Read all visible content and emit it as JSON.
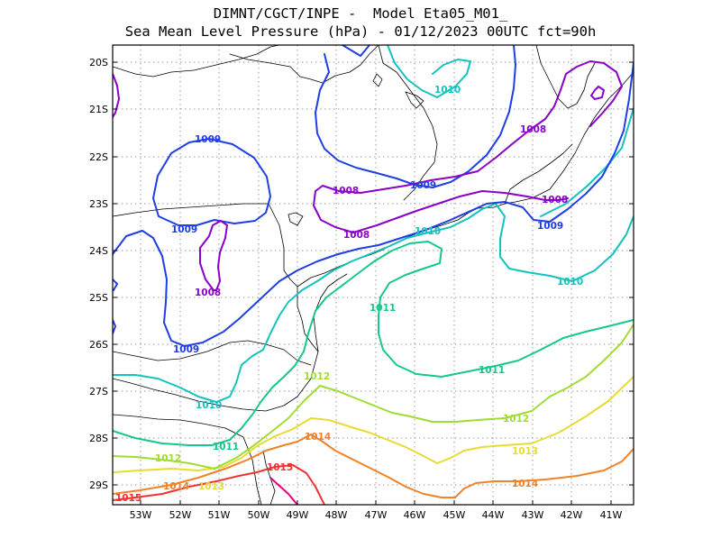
{
  "title": {
    "line1": "DIMNT/CGCT/INPE -  Model Eta05_M01_",
    "line2": "Sea Mean Level Pressure (hPa) - 01/12/2023 00UTC fct=90h"
  },
  "axes": {
    "lat_ticks": [
      "20S",
      "21S",
      "22S",
      "23S",
      "24S",
      "25S",
      "26S",
      "27S",
      "28S",
      "29S"
    ],
    "lon_ticks": [
      "53W",
      "52W",
      "51W",
      "50W",
      "49W",
      "48W",
      "47W",
      "46W",
      "45W",
      "44W",
      "43W",
      "42W",
      "41W"
    ],
    "grid": "dotted"
  },
  "colors": {
    "1008": "#8a00c8",
    "1009": "#1e3ee6",
    "1010": "#14c3be",
    "1011": "#14c88c",
    "1012": "#a0dc32",
    "1013": "#e6dc32",
    "1014": "#f08228",
    "1015": "#f03232",
    "1016": "#e6007a"
  },
  "contour_labels": [
    {
      "text": "1009",
      "level": "1009"
    },
    {
      "text": "1009",
      "level": "1009"
    },
    {
      "text": "1009",
      "level": "1009"
    },
    {
      "text": "1009",
      "level": "1009"
    },
    {
      "text": "1009",
      "level": "1009"
    },
    {
      "text": "1008",
      "level": "1008"
    },
    {
      "text": "1008",
      "level": "1008"
    },
    {
      "text": "1008",
      "level": "1008"
    },
    {
      "text": "1008",
      "level": "1008"
    },
    {
      "text": "1008",
      "level": "1008"
    },
    {
      "text": "1010",
      "level": "1010"
    },
    {
      "text": "1010",
      "level": "1010"
    },
    {
      "text": "1010",
      "level": "1010"
    },
    {
      "text": "1010",
      "level": "1010"
    },
    {
      "text": "1011",
      "level": "1011"
    },
    {
      "text": "1011",
      "level": "1011"
    },
    {
      "text": "1011",
      "level": "1011"
    },
    {
      "text": "1012",
      "level": "1012"
    },
    {
      "text": "1012",
      "level": "1012"
    },
    {
      "text": "1012",
      "level": "1012"
    },
    {
      "text": "1013",
      "level": "1013"
    },
    {
      "text": "1013",
      "level": "1013"
    },
    {
      "text": "1014",
      "level": "1014"
    },
    {
      "text": "1014",
      "level": "1014"
    },
    {
      "text": "1014",
      "level": "1014"
    },
    {
      "text": "1015",
      "level": "1015"
    },
    {
      "text": "1015",
      "level": "1015"
    }
  ]
}
